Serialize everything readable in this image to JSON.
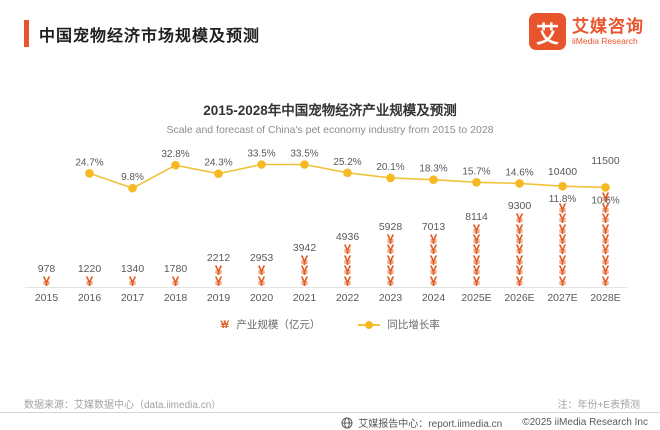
{
  "header": {
    "title": "中国宠物经济市场规模及预测",
    "accent_color": "#E8542B",
    "logo": {
      "badge_text": "艾",
      "brand_cn": "艾媒咨询",
      "brand_en": "iiMedia Research"
    }
  },
  "chart_data": {
    "type": "bar",
    "title": "2015-2028年中国宠物经济产业规模及预测",
    "subtitle": "Scale and forecast of China's pet economy industry from 2015 to 2028",
    "categories": [
      "2015",
      "2016",
      "2017",
      "2018",
      "2019",
      "2020",
      "2021",
      "2022",
      "2023",
      "2024",
      "2025E",
      "2026E",
      "2027E",
      "2028E"
    ],
    "series": [
      {
        "name": "产业规模（亿元）",
        "type": "pictograph-bar",
        "symbol": "¥",
        "color": "#E15E24",
        "values": [
          978,
          1220,
          1340,
          1780,
          2212,
          2953,
          3942,
          4936,
          5928,
          7013,
          8114,
          9300,
          10400,
          11500
        ]
      },
      {
        "name": "同比增长率",
        "type": "line",
        "unit": "%",
        "color": "#F0C33C",
        "dot_color": "#F6B921",
        "values": [
          null,
          24.7,
          9.8,
          32.8,
          24.3,
          33.5,
          33.5,
          25.2,
          20.1,
          18.3,
          15.7,
          14.6,
          11.8,
          10.6
        ]
      }
    ],
    "xlabel": "",
    "ylabel": "",
    "grid": false,
    "legend_position": "bottom"
  },
  "footer": {
    "source": "数据来源：艾媒数据中心（data.iimedia.cn）",
    "note": "注：年份+E表预测",
    "report_center": "艾媒报告中心：report.iimedia.cn",
    "copyright": "©2025 iiMedia Research Inc"
  }
}
